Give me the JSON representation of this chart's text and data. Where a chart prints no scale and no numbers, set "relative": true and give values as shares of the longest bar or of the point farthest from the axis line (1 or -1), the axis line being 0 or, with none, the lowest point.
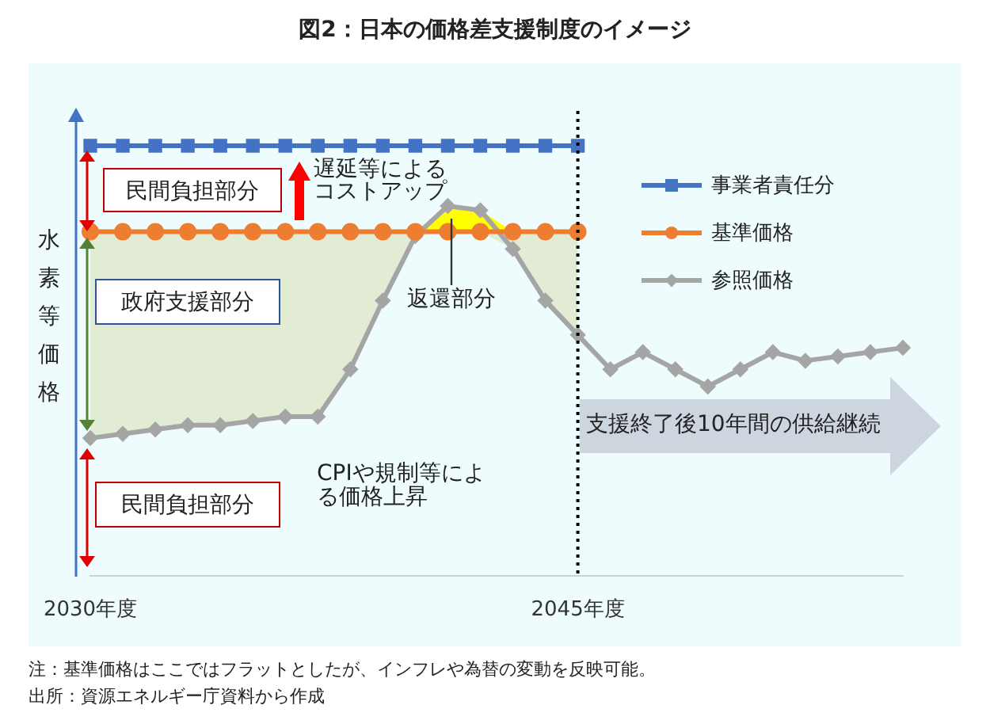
{
  "chart_data": {
    "type": "line",
    "title": "図2：日本の価格差支援制度のイメージ",
    "ylabel": "水素等価格",
    "relative": true,
    "categories": [
      "2030年度",
      null,
      null,
      null,
      null,
      null,
      null,
      null,
      null,
      null,
      null,
      null,
      null,
      null,
      null,
      "2045年度",
      null,
      null,
      null,
      null,
      null,
      null,
      null,
      null,
      null,
      null
    ],
    "series": [
      {
        "name": "事業者責任分",
        "color": "#4472c4",
        "marker": "square",
        "values": [
          1,
          1,
          1,
          1,
          1,
          1,
          1,
          1,
          1,
          1,
          1,
          1,
          1,
          1,
          1,
          1,
          null,
          null,
          null,
          null,
          null,
          null,
          null,
          null,
          null,
          null
        ]
      },
      {
        "name": "基準価格",
        "color": "#ed7d31",
        "marker": "circle",
        "values": [
          0.8,
          0.8,
          0.8,
          0.8,
          0.8,
          0.8,
          0.8,
          0.8,
          0.8,
          0.8,
          0.8,
          0.8,
          0.8,
          0.8,
          0.8,
          0.8,
          null,
          null,
          null,
          null,
          null,
          null,
          null,
          null,
          null,
          null
        ],
        "lower": [
          0.32,
          0.33,
          0.34,
          0.35,
          0.35,
          0.36,
          0.37,
          0.37,
          0.48,
          0.64,
          0.79,
          0.8,
          0.8,
          0.76,
          0.64,
          0.56,
          null,
          null,
          null,
          null,
          null,
          null,
          null,
          null,
          null,
          null
        ],
        "upper": [
          0.8,
          0.8,
          0.8,
          0.8,
          0.8,
          0.8,
          0.8,
          0.8,
          0.8,
          0.8,
          0.8,
          0.8,
          0.8,
          0.8,
          0.8,
          0.8,
          null,
          null,
          null,
          null,
          null,
          null,
          null,
          null,
          null,
          null
        ]
      },
      {
        "name": "参照価格",
        "color": "#a5a5a5",
        "marker": "diamond",
        "values": [
          0.32,
          0.33,
          0.34,
          0.35,
          0.35,
          0.36,
          0.37,
          0.37,
          0.48,
          0.64,
          0.79,
          0.86,
          0.85,
          0.76,
          0.64,
          0.56,
          0.48,
          0.52,
          0.48,
          0.44,
          0.48,
          0.52,
          0.5,
          0.51,
          0.52,
          0.53
        ],
        "lower": [
          null,
          null,
          null,
          null,
          null,
          null,
          null,
          null,
          null,
          null,
          0.8,
          0.8,
          0.8,
          0.8,
          null,
          null,
          null,
          null,
          null,
          null,
          null,
          null,
          null,
          null,
          null,
          null
        ],
        "upper": [
          null,
          null,
          null,
          null,
          null,
          null,
          null,
          null,
          null,
          null,
          0.8,
          0.86,
          0.85,
          0.8,
          null,
          null,
          null,
          null,
          null,
          null,
          null,
          null,
          null,
          null,
          null,
          null
        ]
      }
    ],
    "ref_lines": [
      {
        "axis": "x",
        "value": "2045年度",
        "color": "#000000",
        "line_style": "dotted"
      }
    ],
    "legend": "top right",
    "grid": false,
    "annotations": [
      "民間負担部分",
      "遅延等によるコストアップ",
      "政府支援部分",
      "返還部分",
      "CPIや規制等による価格上昇",
      "支援終了後10年間の供給継続",
      "民間負担部分",
      "注：基準価格はここではフラットとしたが、インフレや為替の変動を反映可能。",
      "出所：資源エネルギー庁資料から作成"
    ]
  }
}
